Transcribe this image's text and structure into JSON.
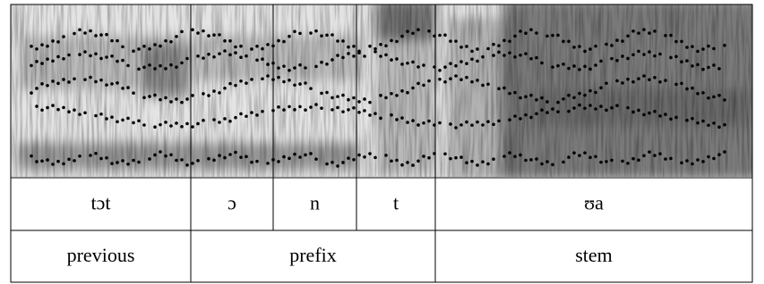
{
  "phones": [
    "tɔt",
    "ɔ",
    "n",
    "t",
    "ʊa"
  ],
  "morphemes": [
    "previous",
    "prefix",
    "stem"
  ]
}
